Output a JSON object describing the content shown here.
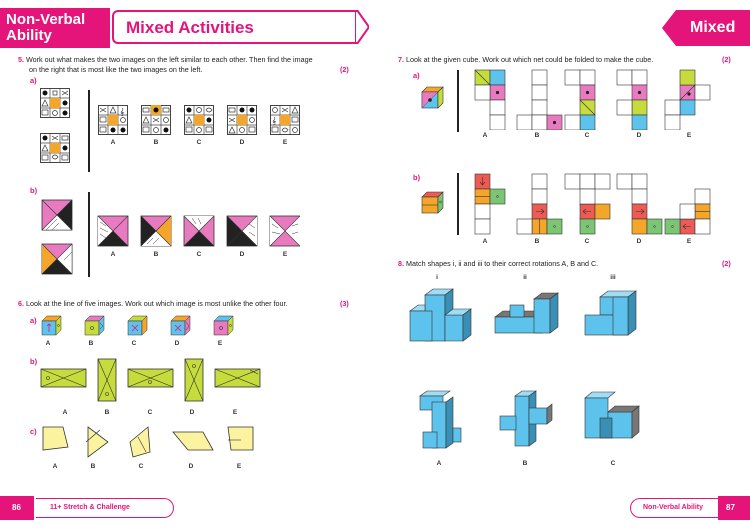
{
  "header": {
    "left_tab": "Non-Verbal Ability",
    "left_tab_line1": "Non-Verbal",
    "left_tab_line2": "Ability",
    "title": "Mixed Activities",
    "right_tab": "Mixed"
  },
  "q5": {
    "number": "5.",
    "text_line1": "Work out what makes the two images on the left similar to each other. Then find the image",
    "text_line2": "on the right that is most like the two images on the left.",
    "marks": "(2)",
    "part_a": "a)",
    "part_b": "b)",
    "options": [
      "A",
      "B",
      "C",
      "D",
      "E"
    ]
  },
  "q6": {
    "number": "6.",
    "text": "Look at the line of five images. Work out which image is most unlike the other four.",
    "marks": "(3)",
    "part_a": "a)",
    "part_b": "b)",
    "part_c": "c)",
    "options": [
      "A",
      "B",
      "C",
      "D",
      "E"
    ]
  },
  "q7": {
    "number": "7.",
    "text": "Look at the given cube. Work out which net could be folded to make the cube.",
    "marks": "(2)",
    "part_a": "a)",
    "part_b": "b)",
    "options": [
      "A",
      "B",
      "C",
      "D",
      "E"
    ]
  },
  "q8": {
    "number": "8.",
    "text": "Match shapes i, ii and iii to their correct rotations A, B and C.",
    "marks": "(2)",
    "shape_labels": [
      "i",
      "ii",
      "iii"
    ],
    "rotation_labels": [
      "A",
      "B",
      "C"
    ]
  },
  "footer": {
    "left_page": "86",
    "left_title": "11+ Stretch & Challenge",
    "right_title": "Non-Verbal Ability",
    "right_page": "87"
  },
  "colors": {
    "accent": "#e4147a",
    "pink": "#e87bc0",
    "yellow_green": "#c6dc3c",
    "light_yellow": "#fbf3a0",
    "cyan": "#5ec3ec",
    "orange": "#f4a62a",
    "red": "#ee5a54",
    "green": "#7cc574"
  }
}
